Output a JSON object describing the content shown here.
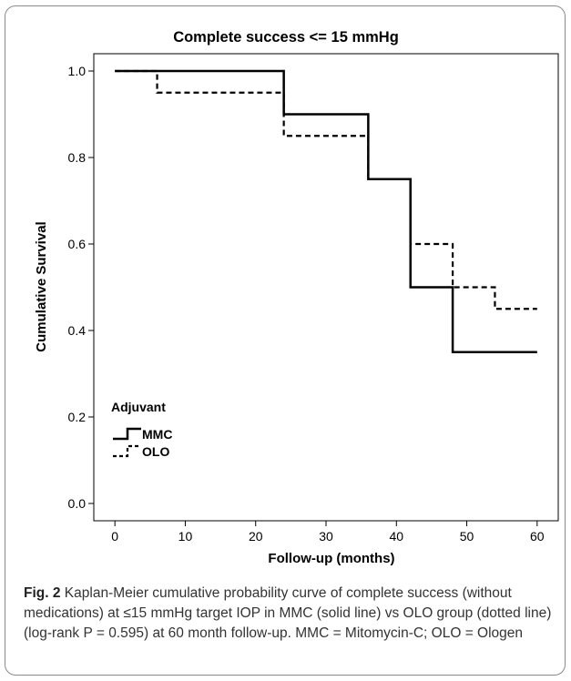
{
  "chart_data": {
    "type": "line",
    "step": true,
    "title": "Complete success <= 15 mmHg",
    "xlabel": "Follow-up (months)",
    "ylabel": "Cumulative Survival",
    "xlim": [
      -3,
      63
    ],
    "ylim": [
      -0.04,
      1.04
    ],
    "xticks": [
      0,
      10,
      20,
      30,
      40,
      50,
      60
    ],
    "yticks": [
      0.0,
      0.2,
      0.4,
      0.6,
      0.8,
      1.0
    ],
    "ytick_labels": [
      "0.0",
      "0.2",
      "0.4",
      "0.6",
      "0.8",
      "1.0"
    ],
    "legend_title": "Adjuvant",
    "legend_position": "lower-left",
    "grid": false,
    "series": [
      {
        "name": "MMC",
        "style": "solid",
        "color": "#000000",
        "points": [
          [
            0,
            1.0
          ],
          [
            24,
            0.9
          ],
          [
            36,
            0.75
          ],
          [
            42,
            0.5
          ],
          [
            48,
            0.35
          ],
          [
            60,
            0.35
          ]
        ]
      },
      {
        "name": "OLO",
        "style": "dashed",
        "color": "#000000",
        "points": [
          [
            0,
            1.0
          ],
          [
            6,
            0.95
          ],
          [
            24,
            0.85
          ],
          [
            36,
            0.75
          ],
          [
            42,
            0.6
          ],
          [
            48,
            0.5
          ],
          [
            54,
            0.45
          ],
          [
            60,
            0.45
          ]
        ]
      }
    ]
  },
  "caption": {
    "label": "Fig. 2",
    "text": "Kaplan-Meier cumulative probability curve of complete success (without medications) at ≤15 mmHg target IOP in MMC (solid line) vs OLO group (dotted line) (log-rank P = 0.595) at 60 month follow-up. MMC = Mitomycin-C; OLO = Ologen"
  }
}
